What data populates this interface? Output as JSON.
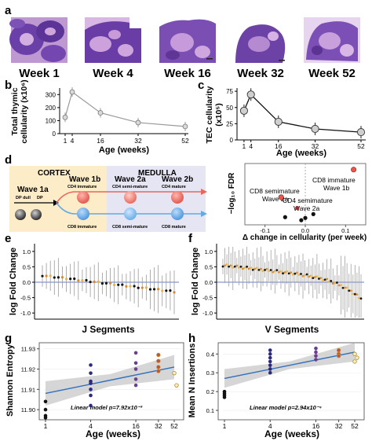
{
  "panel_labels": [
    "a",
    "b",
    "c",
    "d",
    "e",
    "f",
    "g",
    "h"
  ],
  "panel_a": {
    "weeks": [
      "Week 1",
      "Week 4",
      "Week 16",
      "Week 32",
      "Week 52"
    ]
  },
  "colors": {
    "histology_purple": "#6a3fa6",
    "histology_pink": "#d6a2d8",
    "cortex_bg": "#fdecc8",
    "medulla_bg": "#e7e6f5",
    "wave_red": "#e8675c",
    "wave_blue": "#62a9e6",
    "trend_blue": "#2f6fbf",
    "ci_grey": "#cfcfcf",
    "pt_black": "#111111",
    "pt_navy": "#2c2a7a",
    "pt_purple": "#6b3f8e",
    "pt_orange": "#d9892d",
    "pt_cream": "#f7efc8"
  },
  "chart_data": [
    {
      "panel": "b",
      "type": "line",
      "xlabel": "Age (weeks)",
      "ylabel": "Total thymic cellularity (x10⁶)",
      "x_ticks": [
        "1",
        "4",
        "16",
        "32",
        "52"
      ],
      "x": [
        1,
        4,
        16,
        32,
        52
      ],
      "values": [
        125,
        320,
        160,
        85,
        55
      ],
      "y_ticks": [
        "0",
        "100",
        "200",
        "300"
      ],
      "ylim": [
        0,
        350
      ]
    },
    {
      "panel": "c",
      "type": "line",
      "xlabel": "Age (weeks)",
      "ylabel": "TEC cellularity (x10⁵)",
      "x_ticks": [
        "1",
        "4",
        "16",
        "32",
        "52"
      ],
      "x": [
        1,
        4,
        16,
        32,
        52
      ],
      "values": [
        45,
        70,
        28,
        17,
        12
      ],
      "y_ticks": [
        "0",
        "25",
        "50",
        "75"
      ],
      "ylim": [
        0,
        80
      ]
    },
    {
      "panel": "d-scatter",
      "type": "scatter",
      "xlabel": "Δ change in cellularity (per week)",
      "ylabel": "−log₁₀ FDR",
      "x_ticks": [
        "-0.1",
        "0.0",
        "0.1"
      ],
      "points": [
        {
          "label": "CD8 immature Wave 1b",
          "x": 0.12,
          "y": 3.6
        },
        {
          "label": "CD8 semimature Wave 2a",
          "x": -0.06,
          "y": 1.8
        },
        {
          "label": "CD4 semimature Wave 2a",
          "x": -0.02,
          "y": 1.1
        },
        {
          "x": -0.05,
          "y": 0.5
        },
        {
          "x": -0.01,
          "y": 0.3
        },
        {
          "x": 0.0,
          "y": 0.45
        },
        {
          "x": 0.02,
          "y": 0.7
        }
      ],
      "xlim": [
        -0.15,
        0.15
      ],
      "ylim": [
        0,
        4
      ]
    },
    {
      "panel": "e",
      "type": "scatter",
      "xlabel": "J Segments",
      "ylabel": "log Fold Change",
      "y_ticks": [
        "-1.0",
        "-0.5",
        "0.0",
        "0.5",
        "1.0"
      ],
      "ylim": [
        -1.2,
        1.2
      ]
    },
    {
      "panel": "f",
      "type": "scatter",
      "xlabel": "V Segments",
      "ylabel": "log Fold Change",
      "y_ticks": [
        "-1.0",
        "-0.5",
        "0.0",
        "0.5",
        "1.0"
      ],
      "ylim": [
        -1.2,
        1.2
      ]
    },
    {
      "panel": "g",
      "type": "scatter",
      "xlabel": "Age (weeks)",
      "ylabel": "Shannon Entropy",
      "x_ticks": [
        "1",
        "4",
        "16",
        "32",
        "52"
      ],
      "y_ticks": [
        "11.90",
        "11.91",
        "11.92",
        "11.93"
      ],
      "ylim": [
        11.895,
        11.933
      ],
      "annotation": "Linear model p=7.92x10⁻³"
    },
    {
      "panel": "h",
      "type": "scatter",
      "xlabel": "Age (weeks)",
      "ylabel": "Mean N Insertions",
      "x_ticks": [
        "1",
        "4",
        "16",
        "32",
        "52"
      ],
      "y_ticks": [
        "0.1",
        "0.2",
        "0.3",
        "0.4"
      ],
      "ylim": [
        0.05,
        0.46
      ],
      "annotation": "Linear model p=2.94x10⁻⁴"
    }
  ],
  "panel_d": {
    "cortex": "CORTEX",
    "medulla": "MEDULLA",
    "wave_1a": "Wave 1a",
    "dp_dull": "DP dull",
    "dp": "DP",
    "wave_1b": "Wave 1b",
    "cd4_immature": "CD4 immature",
    "cd8_immature": "CD8 immature",
    "wave_2a": "Wave 2a",
    "cd4_semi": "CD4 semi-mature",
    "cd8_semi": "CD8 semi-mature",
    "wave_2b": "Wave 2b",
    "cd4_mature": "CD4 mature",
    "cd8_mature": "CD8 mature",
    "lab_cd8_imm": "CD8 immature",
    "lab_wave_1b": "Wave 1b",
    "lab_cd8_semi": "CD8 semimature",
    "lab_wave_2a_1": "Wave 2a",
    "lab_cd4_semi": "CD4 semimature",
    "lab_wave_2a_2": "Wave 2a"
  }
}
